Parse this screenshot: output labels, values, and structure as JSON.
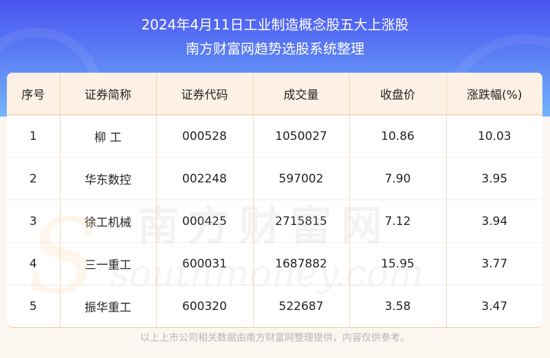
{
  "header": {
    "title": "2024年4月11日工业制造概念股五大上涨股",
    "subtitle": "南方财富网趋势选股系统整理"
  },
  "table": {
    "columns": [
      "序号",
      "证券简称",
      "证券代码",
      "成交量",
      "收盘价",
      "涨跌幅(%)"
    ],
    "rows": [
      [
        "1",
        "柳 工",
        "000528",
        "1050027",
        "10.86",
        "10.03"
      ],
      [
        "2",
        "华东数控",
        "002248",
        "597002",
        "7.90",
        "3.95"
      ],
      [
        "3",
        "徐工机械",
        "000425",
        "2715815",
        "7.12",
        "3.94"
      ],
      [
        "4",
        "三一重工",
        "600031",
        "1687882",
        "15.95",
        "3.77"
      ],
      [
        "5",
        "振华重工",
        "600320",
        "522687",
        "3.58",
        "3.47"
      ]
    ]
  },
  "watermark": {
    "cn": "南方财富网",
    "en": "southmoney.com"
  },
  "footer": "以上上市公司相关数据由南方财富网整理提供，内容仅供参考。",
  "colors": {
    "banner": "#4a55f0",
    "header_bg": "#fdf0e4",
    "border": "#f5c28e",
    "page_bg": "#fbf6f0"
  }
}
